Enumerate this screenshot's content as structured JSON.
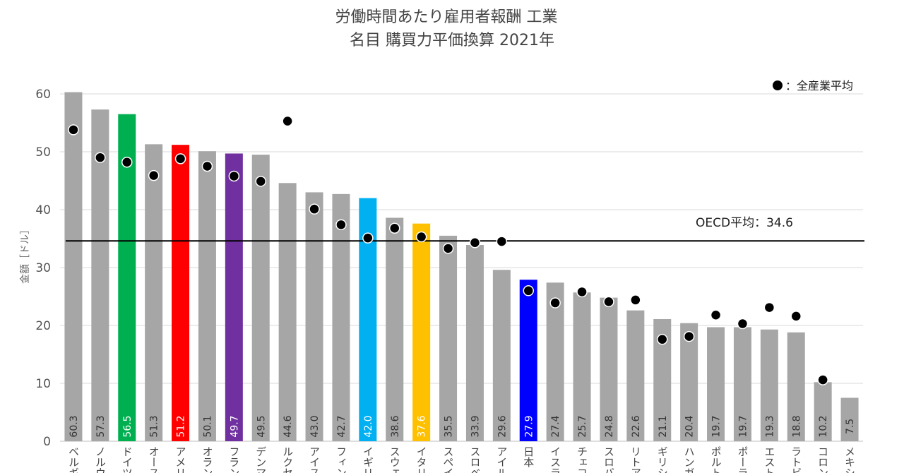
{
  "chart_data": {
    "type": "bar",
    "title": "労働時間あたり雇用者報酬 工業",
    "subtitle": "名目 購買力平価換算 2021年",
    "ylabel": "金額［ドル］",
    "ylim": [
      0,
      60
    ],
    "yticks": [
      0,
      10,
      20,
      30,
      40,
      50,
      60
    ],
    "grid": true,
    "legend_position": "top-right",
    "legend_label": "：全産業平均",
    "reference_line": {
      "label": "OECD平均：34.6",
      "value": 34.6
    },
    "categories": [
      "ベルギー",
      "ノルウェー",
      "ドイツ",
      "オーストリア",
      "アメリカ",
      "オランダ",
      "フランス",
      "デンマーク",
      "ルクセンブルク",
      "アイスランド",
      "フィンランド",
      "イギリス",
      "スウェーデン",
      "イタリア",
      "スペイン",
      "スロベニア",
      "アイルランド",
      "日本",
      "イスラエル",
      "チェコ",
      "スロバキア",
      "リトアニア",
      "ギリシャ",
      "ハンガリー",
      "ポルトガル",
      "ポーランド",
      "エストニア",
      "ラトビア",
      "コロンビア",
      "メキシコ"
    ],
    "category_display": [
      "ベルギ",
      "ノルウ",
      "ドイツ",
      "オース",
      "アメリ",
      "オラン",
      "フラン",
      "デンマ",
      "ルクセ",
      "アイス",
      "フィン",
      "イギリ",
      "スウェ",
      "イタリ",
      "スペイ",
      "スロベ",
      "アイル",
      "日本",
      "イスラ",
      "チェコ",
      "スロバ",
      "リトア",
      "ギリシ",
      "ハンガ",
      "ポルト",
      "ポーラ",
      "エスト",
      "ラトビ",
      "コロン",
      "メキシ"
    ],
    "series": [
      {
        "name": "工業",
        "values": [
          60.3,
          57.3,
          56.5,
          51.3,
          51.2,
          50.1,
          49.7,
          49.5,
          44.6,
          43.0,
          42.7,
          42.0,
          38.6,
          37.6,
          35.5,
          33.9,
          29.6,
          27.9,
          27.4,
          25.7,
          24.8,
          22.6,
          21.1,
          20.4,
          19.7,
          19.7,
          19.3,
          18.8,
          10.2,
          7.5
        ]
      },
      {
        "name": "全産業平均",
        "values": [
          53.8,
          49.0,
          48.2,
          45.9,
          48.8,
          47.5,
          45.8,
          44.9,
          55.3,
          40.1,
          37.4,
          35.1,
          36.8,
          35.3,
          33.3,
          34.3,
          34.5,
          26.0,
          23.9,
          25.8,
          24.1,
          24.4,
          17.6,
          18.1,
          21.8,
          20.3,
          23.1,
          21.6,
          10.6,
          null
        ]
      }
    ],
    "value_labels": [
      "60.3",
      "57.3",
      "56.5",
      "51.3",
      "51.2",
      "50.1",
      "49.7",
      "49.5",
      "44.6",
      "43.0",
      "42.7",
      "42.0",
      "38.6",
      "37.6",
      "35.5",
      "33.9",
      "29.6",
      "27.9",
      "27.4",
      "25.7",
      "24.8",
      "22.6",
      "21.1",
      "20.4",
      "19.7",
      "19.7",
      "19.3",
      "18.8",
      "10.2",
      "7.5"
    ],
    "colors": {
      "default_bar": "#a6a6a6",
      "highlight": {
        "ドイツ": "#00b050",
        "アメリカ": "#ff0000",
        "フランス": "#7030a0",
        "イギリス": "#00b0f0",
        "イタリア": "#ffc000",
        "日本": "#0000ff"
      },
      "dot": "#000000",
      "reference_line": "#000000"
    }
  }
}
